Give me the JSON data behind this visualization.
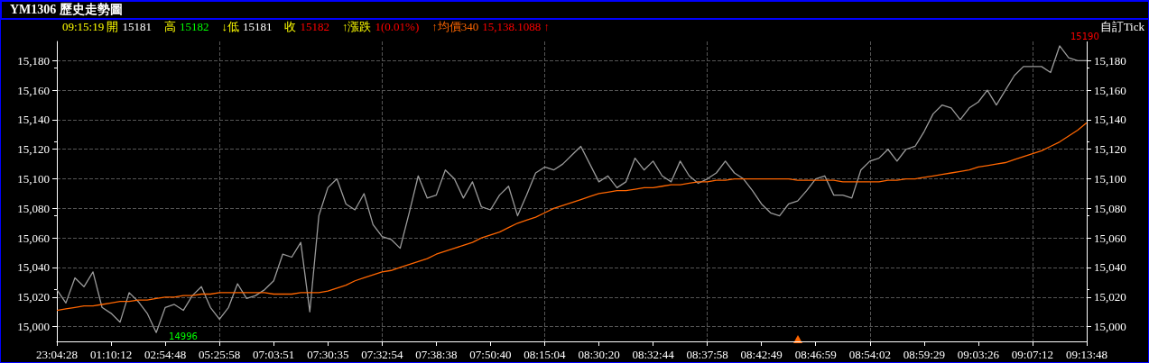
{
  "chart_data": {
    "type": "line",
    "title": "YM1306 歷史走勢圖",
    "annotations": [
      "09:15:19 開",
      "15181",
      "高",
      "15182",
      "↓低",
      "15181",
      "收",
      "15182",
      "↑漲跌",
      "1(0.01%)",
      "↑均價340",
      "15,138.1088 ↑",
      "自訂Tick",
      "14996",
      "15190"
    ],
    "categories": [
      "23:04:28",
      null,
      null,
      null,
      null,
      null,
      "01:10:12",
      null,
      null,
      null,
      null,
      null,
      "02:54:48",
      null,
      null,
      null,
      null,
      null,
      "05:25:58",
      null,
      null,
      null,
      null,
      null,
      "07:03:51",
      null,
      null,
      null,
      null,
      null,
      "07:30:35",
      null,
      null,
      null,
      null,
      null,
      "07:32:54",
      null,
      null,
      null,
      null,
      null,
      "07:38:38",
      null,
      null,
      null,
      null,
      null,
      "07:50:40",
      null,
      null,
      null,
      null,
      null,
      "08:15:04",
      null,
      null,
      null,
      null,
      null,
      "08:30:20",
      null,
      null,
      null,
      null,
      null,
      "08:32:44",
      null,
      null,
      null,
      null,
      null,
      "08:37:58",
      null,
      null,
      null,
      null,
      null,
      "08:42:49",
      null,
      null,
      null,
      null,
      null,
      "08:46:59",
      null,
      null,
      null,
      null,
      null,
      "08:54:02",
      null,
      null,
      null,
      null,
      null,
      "08:59:29",
      null,
      null,
      null,
      null,
      null,
      "09:03:26",
      null,
      null,
      null,
      null,
      null,
      "09:07:12",
      null,
      null,
      null,
      null,
      null,
      "09:13:48"
    ],
    "series": [
      {
        "color": "#9a9a9a",
        "values": [
          15025,
          15016,
          15033,
          15027,
          15037,
          15013,
          15009,
          15003,
          15023,
          15017,
          15009,
          14996,
          15013,
          15015,
          15011,
          15021,
          15027,
          15013,
          15005,
          15013,
          15029,
          15019,
          15021,
          15025,
          15031,
          15049,
          15047,
          15057,
          15010,
          15075,
          15094,
          15100,
          15083,
          15079,
          15090,
          15069,
          15061,
          15059,
          15053,
          15077,
          15102,
          15087,
          15089,
          15106,
          15100,
          15087,
          15098,
          15081,
          15079,
          15089,
          15095,
          15075,
          15089,
          15104,
          15108,
          15106,
          15110,
          15116,
          15122,
          15110,
          15098,
          15102,
          15094,
          15098,
          15114,
          15106,
          15112,
          15102,
          15098,
          15112,
          15102,
          15097,
          15100,
          15104,
          15112,
          15104,
          15100,
          15092,
          15083,
          15077,
          15075,
          15083,
          15085,
          15092,
          15100,
          15102,
          15089,
          15089,
          15087,
          15106,
          15112,
          15114,
          15120,
          15112,
          15120,
          15122,
          15132,
          15144,
          15150,
          15148,
          15140,
          15148,
          15152,
          15160,
          15150,
          15160,
          15170,
          15176,
          15176,
          15176,
          15172,
          15190,
          15182,
          15180,
          15180
        ]
      },
      {
        "color": "#ff6600",
        "values": [
          15011,
          15012,
          15013,
          15014,
          15014,
          15015,
          15016,
          15017,
          15017,
          15018,
          15018,
          15019,
          15020,
          15020,
          15021,
          15021,
          15022,
          15022,
          15023,
          15023,
          15023,
          15023,
          15023,
          15023,
          15022,
          15022,
          15022,
          15023,
          15023,
          15023,
          15024,
          15026,
          15028,
          15031,
          15033,
          15035,
          15037,
          15038,
          15040,
          15042,
          15044,
          15046,
          15049,
          15051,
          15053,
          15055,
          15057,
          15060,
          15062,
          15064,
          15067,
          15070,
          15072,
          15074,
          15077,
          15080,
          15082,
          15084,
          15086,
          15088,
          15090,
          15091,
          15092,
          15092,
          15093,
          15094,
          15094,
          15095,
          15096,
          15096,
          15097,
          15098,
          15098,
          15099,
          15099,
          15100,
          15100,
          15100,
          15100,
          15100,
          15100,
          15100,
          15099,
          15099,
          15099,
          15099,
          15099,
          15098,
          15098,
          15098,
          15098,
          15098,
          15099,
          15099,
          15100,
          15100,
          15101,
          15102,
          15103,
          15104,
          15105,
          15106,
          15108,
          15109,
          15110,
          15111,
          15113,
          15115,
          15117,
          15119,
          15122,
          15125,
          15129,
          15133,
          15138
        ]
      }
    ],
    "ylim": [
      14990,
      15193
    ],
    "yticks": [
      {
        "value": 15000,
        "label": "15,000"
      },
      {
        "value": 15020,
        "label": "15,020"
      },
      {
        "value": 15040,
        "label": "15,040"
      },
      {
        "value": 15060,
        "label": "15,060"
      },
      {
        "value": 15080,
        "label": "15,080"
      },
      {
        "value": 15100,
        "label": "15,100"
      },
      {
        "value": 15120,
        "label": "15,120"
      },
      {
        "value": 15140,
        "label": "15,140"
      },
      {
        "value": 15160,
        "label": "15,160"
      },
      {
        "value": 15180,
        "label": "15,180"
      }
    ],
    "y2lim": [
      14990,
      15193
    ],
    "y2ticks": [
      {
        "value": 15000,
        "label": "15,000"
      },
      {
        "value": 15020,
        "label": "15,020"
      },
      {
        "value": 15040,
        "label": "15,040"
      },
      {
        "value": 15060,
        "label": "15,060"
      },
      {
        "value": 15080,
        "label": "15,080"
      },
      {
        "value": 15100,
        "label": "15,100"
      },
      {
        "value": 15120,
        "label": "15,120"
      },
      {
        "value": 15140,
        "label": "15,140"
      },
      {
        "value": 15160,
        "label": "15,160"
      },
      {
        "value": 15180,
        "label": "15,180"
      }
    ],
    "grid": true,
    "marker": "none",
    "line_style": "solid"
  }
}
